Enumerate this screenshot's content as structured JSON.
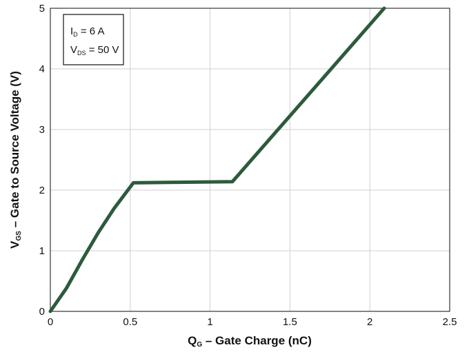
{
  "chart_data": {
    "type": "line",
    "title": "",
    "xlabel": {
      "main": "Q",
      "sub": "G",
      "rest": " – Gate Charge (nC)"
    },
    "ylabel": {
      "main": "V",
      "sub": "GS",
      "rest": " – Gate to Source Voltage (V)"
    },
    "xlim": [
      0,
      2.5
    ],
    "ylim": [
      0,
      5
    ],
    "x_ticks": [
      "0",
      "0.5",
      "1",
      "1.5",
      "2",
      "2.5"
    ],
    "y_ticks": [
      "0",
      "1",
      "2",
      "3",
      "4",
      "5"
    ],
    "grid": true,
    "annotation": {
      "line1": {
        "main": "I",
        "sub": "D",
        "rest": " = 6 A"
      },
      "line2": {
        "main": "V",
        "sub": "DS",
        "rest": " = 50 V"
      }
    },
    "series": [
      {
        "color": "#2d5a3d",
        "x": [
          0,
          0.1,
          0.2,
          0.3,
          0.4,
          0.52,
          0.8,
          1.14,
          2.09
        ],
        "y": [
          0,
          0.38,
          0.85,
          1.3,
          1.7,
          2.12,
          2.13,
          2.14,
          5.0
        ]
      }
    ]
  }
}
